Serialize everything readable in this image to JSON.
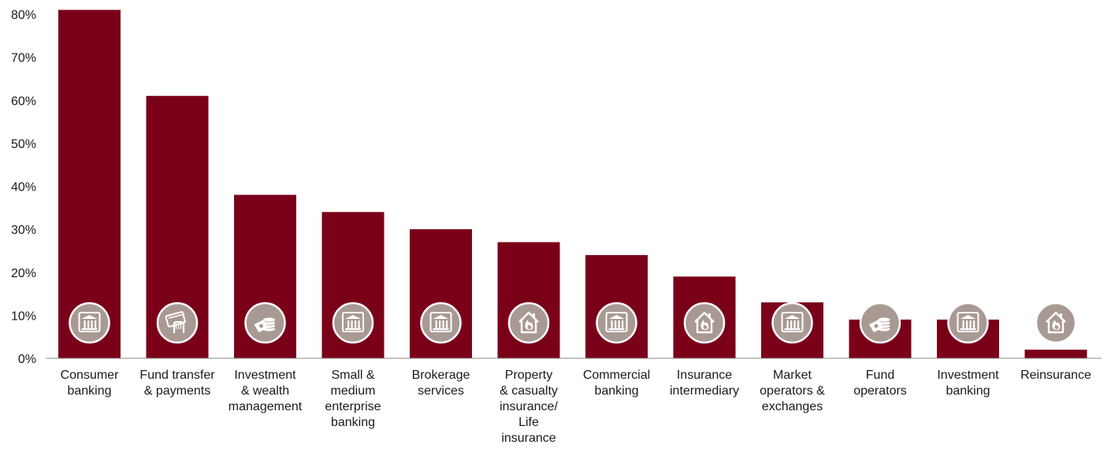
{
  "chart_data": {
    "type": "bar",
    "title": "",
    "xlabel": "",
    "ylabel": "",
    "ylim": [
      0,
      80
    ],
    "y_ticks": [
      "0%",
      "10%",
      "20%",
      "30%",
      "40%",
      "50%",
      "60%",
      "70%",
      "80%"
    ],
    "y_tick_values": [
      0,
      10,
      20,
      30,
      40,
      50,
      60,
      70,
      80
    ],
    "grid": false,
    "legend": "none",
    "bar_color": "#7a0019",
    "icon_circle_color": "#a89a93",
    "categories": [
      "Consumer banking",
      "Fund transfer & payments",
      "Investment & wealth management",
      "Small & medium enterprise banking",
      "Brokerage services",
      "Property & casualty insurance/ Life insurance",
      "Commercial banking",
      "Insurance intermediary",
      "Market operators & exchanges",
      "Fund operators",
      "Investment banking",
      "Reinsurance"
    ],
    "category_label_lines": [
      [
        "Consumer",
        "banking"
      ],
      [
        "Fund transfer",
        "& payments"
      ],
      [
        "Investment",
        "& wealth",
        "management"
      ],
      [
        "Small &",
        "medium",
        "enterprise",
        "banking"
      ],
      [
        "Brokerage",
        "services"
      ],
      [
        "Property",
        "& casualty",
        "insurance/",
        "Life",
        "insurance"
      ],
      [
        "Commercial",
        "banking"
      ],
      [
        "Insurance",
        "intermediary"
      ],
      [
        "Market",
        "operators &",
        "exchanges"
      ],
      [
        "Fund",
        "operators"
      ],
      [
        "Investment",
        "banking"
      ],
      [
        "Reinsurance"
      ]
    ],
    "values": [
      81,
      61,
      38,
      34,
      30,
      27,
      24,
      19,
      13,
      9,
      9,
      2
    ],
    "icons": [
      "bank-icon",
      "card-payment-icon",
      "coins-icon",
      "bank-icon",
      "bank-icon",
      "house-flame-icon",
      "bank-icon",
      "house-flame-icon",
      "bank-icon",
      "coins-icon",
      "bank-icon",
      "house-flame-icon"
    ]
  }
}
